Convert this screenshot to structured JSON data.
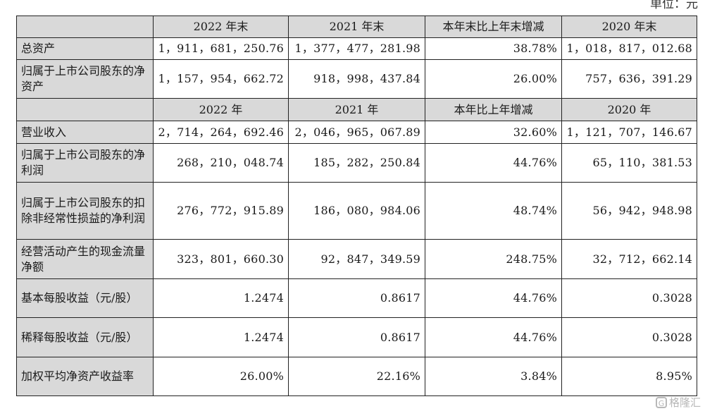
{
  "unit_label": "单位：元",
  "header1": {
    "c1": "2022 年末",
    "c2": "2021 年末",
    "c3": "本年末比上年末增减",
    "c4": "2020 年末"
  },
  "header2": {
    "c1": "2022 年",
    "c2": "2021 年",
    "c3": "本年比上年增减",
    "c4": "2020 年"
  },
  "balance_rows": [
    {
      "label": "总资产",
      "v1": "1，911，681，250.76",
      "v2": "1，377，477，281.98",
      "v3": "38.78%",
      "v4": "1，018，817，012.68"
    },
    {
      "label": "归属于上市公司股东的净资产",
      "v1": "1，157，954，662.72",
      "v2": "918，998，437.84",
      "v3": "26.00%",
      "v4": "757，636，391.29"
    }
  ],
  "income_rows": [
    {
      "label": "营业收入",
      "v1": "2，714，264，692.46",
      "v2": "2，046，965，067.89",
      "v3": "32.60%",
      "v4": "1，121，707，146.67"
    },
    {
      "label": "归属于上市公司股东的净利润",
      "v1": "268，210，048.74",
      "v2": "185，282，250.84",
      "v3": "44.76%",
      "v4": "65，110，381.53"
    },
    {
      "label": "归属于上市公司股东的扣除非经常性损益的净利润",
      "v1": "276，772，915.89",
      "v2": "186，080，984.06",
      "v3": "48.74%",
      "v4": "56，942，948.98"
    },
    {
      "label": "经营活动产生的现金流量净额",
      "v1": "323，801，660.30",
      "v2": "92，847，349.59",
      "v3": "248.75%",
      "v4": "32，712，662.14"
    },
    {
      "label": "基本每股收益（元/股）",
      "v1": "1.2474",
      "v2": "0.8617",
      "v3": "44.76%",
      "v4": "0.3028"
    },
    {
      "label": "稀释每股收益（元/股）",
      "v1": "1.2474",
      "v2": "0.8617",
      "v3": "44.76%",
      "v4": "0.3028"
    },
    {
      "label": "加权平均净资产收益率",
      "v1": "26.00%",
      "v2": "22.16%",
      "v3": "3.84%",
      "v4": "8.95%"
    }
  ],
  "watermark": {
    "icon": "G",
    "text": "格隆汇"
  }
}
